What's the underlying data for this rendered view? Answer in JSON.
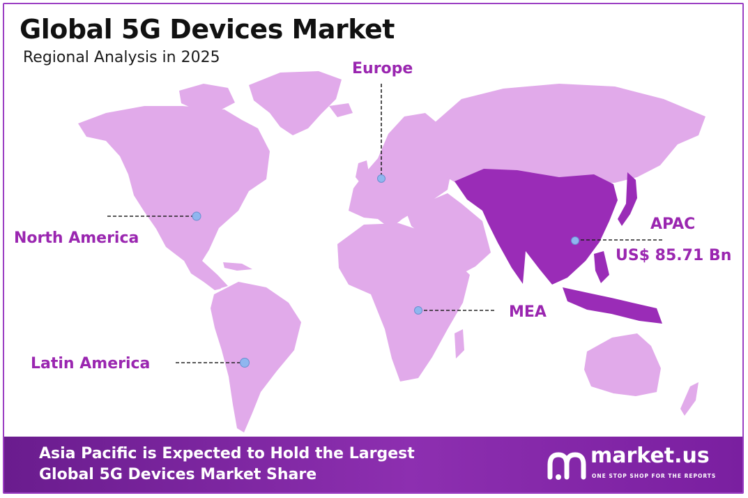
{
  "header": {
    "title": "Global 5G Devices Market",
    "subtitle": "Regional Analysis in 2025"
  },
  "colors": {
    "land": "#e1aaea",
    "apac_highlight": "#9a2cb7",
    "label": "#9a26b0",
    "marker": "#8fb6ef",
    "footer": "#7a24a3"
  },
  "regions": [
    {
      "name": "North America"
    },
    {
      "name": "Europe"
    },
    {
      "name": "APAC",
      "value": "US$ 85.71 Bn"
    },
    {
      "name": "MEA"
    },
    {
      "name": "Latin America"
    }
  ],
  "footer": {
    "line1": "Asia Pacific is Expected to Hold the Largest",
    "line2": "Global 5G Devices Market Share"
  },
  "logo": {
    "name": "market.us",
    "tagline": "ONE STOP SHOP FOR THE REPORTS"
  }
}
